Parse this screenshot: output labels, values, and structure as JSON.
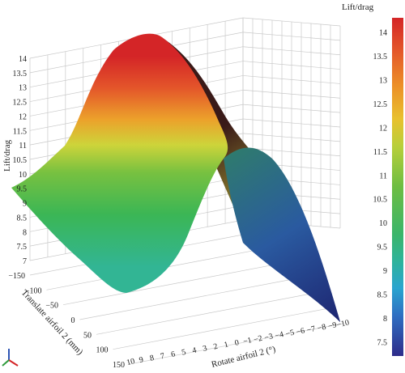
{
  "chart_data": {
    "type": "surface",
    "title": "",
    "zlabel": "Lift/drag",
    "ylabel": "Translate airfoil 2 (mm)",
    "xlabel": "Rotate airfoil 2 (°)",
    "z_ticks": [
      "7",
      "7.5",
      "8",
      "8.5",
      "9",
      "9.5",
      "10",
      "10.5",
      "11",
      "11.5",
      "12",
      "12.5",
      "13",
      "13.5",
      "14"
    ],
    "y_ticks": [
      "-150",
      "-100",
      "-50",
      "0",
      "50",
      "100",
      "150"
    ],
    "x_ticks": [
      "10",
      "9",
      "8",
      "7",
      "6",
      "5",
      "4",
      "3",
      "2",
      "1",
      "0",
      "-1",
      "-2",
      "-3",
      "-4",
      "-5",
      "-6",
      "-7",
      "-8",
      "-9",
      "-10"
    ],
    "zlim": [
      7,
      14
    ],
    "colorbar": {
      "title": "Lift/drag",
      "ticks": [
        "14",
        "13.5",
        "13",
        "12.5",
        "12",
        "11.5",
        "11",
        "10.5",
        "10",
        "9.5",
        "9",
        "8.5",
        "8",
        "7.5"
      ],
      "range": [
        7.2,
        14.3
      ],
      "colors": [
        "#2e2c8a",
        "#2f55b5",
        "#2a8fd0",
        "#2fb39b",
        "#3bb56a",
        "#57b848",
        "#8cc43f",
        "#c8d33a",
        "#e8c12e",
        "#ec8f27",
        "#e4582a",
        "#d42527"
      ]
    },
    "surface": {
      "rotate_values_deg": [
        10,
        5,
        0,
        -5,
        -10
      ],
      "translate_values_mm": [
        -150,
        -75,
        0,
        75,
        150
      ],
      "lift_drag": [
        [
          9.5,
          10.2,
          9.0,
          8.0,
          7.5
        ],
        [
          9.4,
          12.0,
          13.0,
          10.0,
          8.0
        ],
        [
          9.3,
          13.8,
          14.2,
          11.0,
          8.5
        ],
        [
          9.2,
          12.5,
          13.0,
          10.2,
          8.0
        ],
        [
          9.0,
          10.8,
          10.6,
          9.0,
          7.2
        ]
      ]
    }
  },
  "axis_triad": {
    "x_color": "#d42527",
    "y_color": "#2e9a3a",
    "z_color": "#2f55b5"
  }
}
